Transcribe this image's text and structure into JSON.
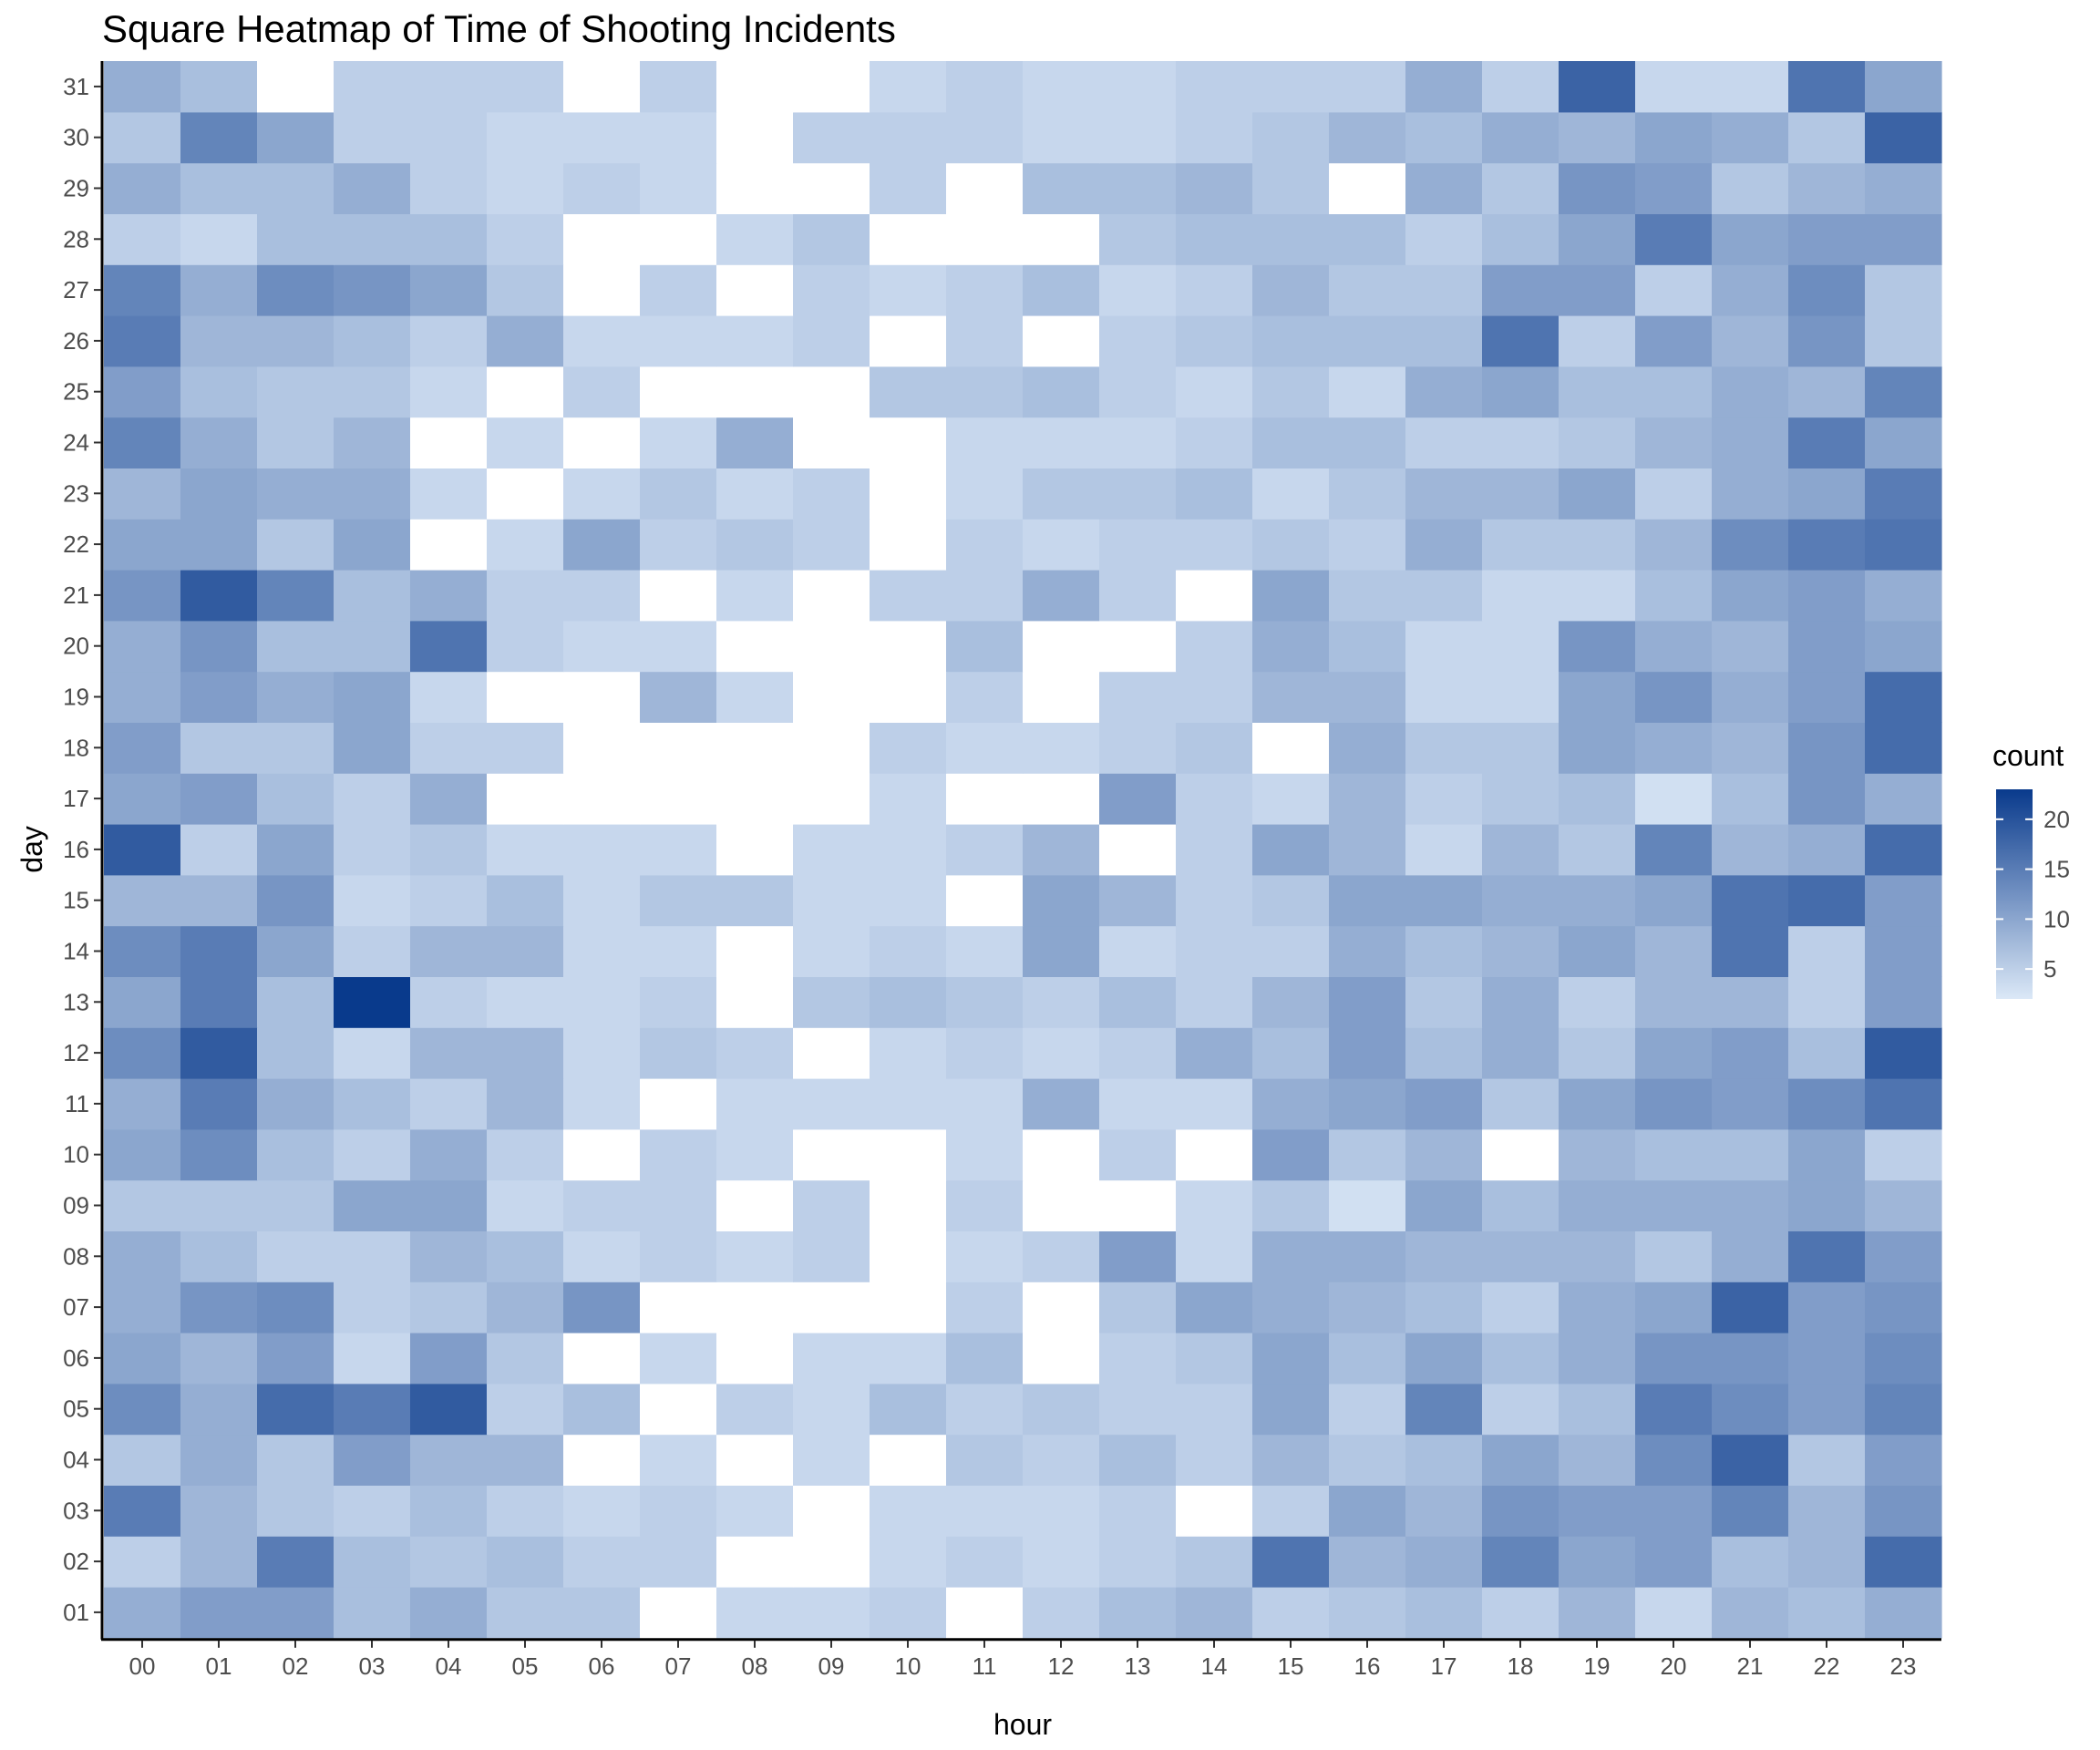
{
  "chart_data": {
    "type": "heatmap",
    "title": "Square Heatmap of Time of Shooting Incidents",
    "xlabel": "hour",
    "ylabel": "day",
    "x_categories": [
      "00",
      "01",
      "02",
      "03",
      "04",
      "05",
      "06",
      "07",
      "08",
      "09",
      "10",
      "11",
      "12",
      "13",
      "14",
      "15",
      "16",
      "17",
      "18",
      "19",
      "20",
      "21",
      "22",
      "23"
    ],
    "y_categories": [
      "01",
      "02",
      "03",
      "04",
      "05",
      "06",
      "07",
      "08",
      "09",
      "10",
      "11",
      "12",
      "13",
      "14",
      "15",
      "16",
      "17",
      "18",
      "19",
      "20",
      "21",
      "22",
      "23",
      "24",
      "25",
      "26",
      "27",
      "28",
      "29",
      "30",
      "31"
    ],
    "legend": {
      "title": "count",
      "ticks": [
        5,
        10,
        15,
        20
      ],
      "tick_labels": [
        "5",
        "10",
        "15",
        "20"
      ],
      "min": 2,
      "max": 23,
      "low_color": "#dbe8f7",
      "high_color": "#093a8c",
      "placement": "right"
    },
    "grid": false,
    "missing_color": "#ffffff",
    "values": [
      [
        9,
        11,
        11,
        7,
        9,
        6,
        6,
        null,
        4,
        4,
        5,
        null,
        5,
        7,
        8,
        5,
        6,
        7,
        5,
        8,
        4,
        8,
        7,
        9
      ],
      [
        5,
        8,
        15,
        7,
        6,
        7,
        5,
        5,
        null,
        null,
        4,
        5,
        4,
        5,
        6,
        16,
        8,
        9,
        14,
        10,
        11,
        7,
        8,
        17
      ],
      [
        15,
        8,
        6,
        5,
        7,
        5,
        4,
        5,
        4,
        null,
        4,
        4,
        4,
        5,
        null,
        5,
        10,
        8,
        12,
        11,
        11,
        14,
        8,
        12
      ],
      [
        6,
        9,
        6,
        11,
        8,
        8,
        null,
        4,
        null,
        4,
        null,
        6,
        5,
        7,
        5,
        8,
        6,
        7,
        10,
        8,
        13,
        18,
        6,
        11
      ],
      [
        13,
        9,
        17,
        15,
        19,
        5,
        7,
        null,
        5,
        4,
        7,
        5,
        6,
        5,
        5,
        10,
        5,
        14,
        5,
        7,
        15,
        13,
        11,
        14
      ],
      [
        10,
        8,
        11,
        4,
        11,
        6,
        null,
        4,
        null,
        4,
        4,
        7,
        null,
        5,
        6,
        10,
        7,
        10,
        7,
        9,
        12,
        12,
        11,
        13
      ],
      [
        9,
        12,
        13,
        5,
        6,
        8,
        12,
        null,
        null,
        null,
        null,
        5,
        null,
        6,
        10,
        9,
        8,
        7,
        5,
        9,
        10,
        18,
        11,
        12
      ],
      [
        9,
        7,
        5,
        5,
        8,
        7,
        4,
        5,
        4,
        5,
        null,
        4,
        5,
        11,
        4,
        9,
        9,
        8,
        8,
        8,
        6,
        9,
        16,
        11
      ],
      [
        6,
        6,
        6,
        10,
        10,
        4,
        5,
        5,
        null,
        5,
        null,
        5,
        null,
        null,
        4,
        6,
        3,
        10,
        7,
        9,
        9,
        9,
        10,
        8
      ],
      [
        10,
        13,
        7,
        5,
        9,
        5,
        null,
        5,
        4,
        null,
        null,
        4,
        null,
        5,
        null,
        11,
        6,
        8,
        null,
        8,
        7,
        7,
        10,
        5
      ],
      [
        9,
        15,
        9,
        7,
        5,
        8,
        4,
        null,
        4,
        4,
        4,
        4,
        9,
        4,
        4,
        9,
        10,
        11,
        6,
        10,
        12,
        11,
        13,
        16
      ],
      [
        13,
        19,
        7,
        4,
        8,
        8,
        4,
        6,
        5,
        null,
        4,
        5,
        4,
        5,
        9,
        7,
        11,
        7,
        9,
        6,
        10,
        11,
        7,
        19
      ],
      [
        10,
        15,
        7,
        23,
        5,
        4,
        4,
        5,
        null,
        6,
        7,
        6,
        5,
        7,
        5,
        8,
        11,
        6,
        9,
        5,
        8,
        8,
        5,
        11
      ],
      [
        13,
        15,
        10,
        5,
        8,
        8,
        4,
        4,
        null,
        4,
        5,
        4,
        10,
        4,
        5,
        5,
        9,
        7,
        8,
        10,
        8,
        16,
        5,
        11
      ],
      [
        8,
        8,
        12,
        4,
        5,
        7,
        4,
        6,
        6,
        4,
        4,
        null,
        10,
        8,
        5,
        6,
        10,
        10,
        9,
        9,
        10,
        16,
        17,
        11
      ],
      [
        19,
        5,
        10,
        5,
        6,
        4,
        4,
        4,
        null,
        4,
        4,
        5,
        8,
        null,
        5,
        10,
        8,
        4,
        8,
        6,
        14,
        8,
        9,
        17
      ],
      [
        10,
        11,
        7,
        5,
        9,
        null,
        null,
        null,
        null,
        null,
        4,
        null,
        null,
        11,
        5,
        4,
        8,
        5,
        6,
        7,
        3,
        7,
        12,
        9
      ],
      [
        11,
        6,
        6,
        10,
        5,
        5,
        null,
        null,
        null,
        null,
        5,
        4,
        4,
        5,
        6,
        null,
        9,
        6,
        6,
        10,
        9,
        8,
        12,
        17
      ],
      [
        9,
        11,
        9,
        10,
        4,
        null,
        null,
        8,
        4,
        null,
        null,
        5,
        null,
        5,
        5,
        8,
        8,
        4,
        4,
        10,
        12,
        9,
        11,
        17
      ],
      [
        9,
        12,
        7,
        7,
        16,
        5,
        4,
        4,
        null,
        null,
        null,
        7,
        null,
        null,
        5,
        9,
        7,
        4,
        4,
        12,
        9,
        8,
        11,
        10
      ],
      [
        12,
        19,
        14,
        7,
        9,
        5,
        5,
        null,
        4,
        null,
        5,
        5,
        9,
        5,
        null,
        10,
        6,
        6,
        4,
        4,
        7,
        10,
        11,
        9
      ],
      [
        10,
        10,
        6,
        10,
        null,
        4,
        10,
        5,
        6,
        5,
        null,
        5,
        4,
        5,
        5,
        6,
        5,
        9,
        6,
        6,
        8,
        13,
        15,
        16
      ],
      [
        8,
        10,
        9,
        9,
        4,
        null,
        4,
        6,
        4,
        5,
        null,
        4,
        6,
        6,
        7,
        4,
        6,
        8,
        8,
        10,
        5,
        9,
        10,
        15
      ],
      [
        14,
        9,
        6,
        8,
        null,
        4,
        null,
        4,
        9,
        null,
        null,
        4,
        4,
        4,
        5,
        7,
        7,
        5,
        5,
        6,
        8,
        9,
        15,
        10
      ],
      [
        11,
        7,
        6,
        6,
        4,
        null,
        5,
        null,
        null,
        null,
        6,
        6,
        7,
        5,
        4,
        6,
        4,
        9,
        10,
        7,
        7,
        9,
        8,
        14
      ],
      [
        15,
        8,
        8,
        7,
        5,
        9,
        4,
        4,
        4,
        5,
        null,
        5,
        null,
        5,
        6,
        7,
        7,
        7,
        16,
        5,
        11,
        8,
        12,
        6
      ],
      [
        14,
        9,
        13,
        12,
        10,
        6,
        null,
        5,
        null,
        5,
        4,
        5,
        7,
        4,
        5,
        8,
        6,
        6,
        11,
        11,
        5,
        9,
        13,
        6
      ],
      [
        5,
        4,
        7,
        7,
        7,
        5,
        null,
        null,
        4,
        6,
        null,
        null,
        null,
        6,
        7,
        7,
        7,
        5,
        7,
        10,
        15,
        10,
        11,
        11
      ],
      [
        9,
        7,
        7,
        9,
        5,
        4,
        5,
        4,
        null,
        null,
        5,
        null,
        7,
        7,
        8,
        6,
        null,
        9,
        6,
        12,
        11,
        6,
        8,
        9
      ],
      [
        6,
        14,
        10,
        5,
        5,
        4,
        4,
        4,
        null,
        5,
        5,
        5,
        4,
        4,
        5,
        6,
        8,
        7,
        9,
        8,
        10,
        9,
        6,
        18
      ],
      [
        9,
        7,
        null,
        5,
        5,
        5,
        null,
        5,
        null,
        null,
        4,
        5,
        4,
        4,
        5,
        5,
        5,
        9,
        5,
        18,
        4,
        4,
        16,
        10
      ]
    ]
  }
}
